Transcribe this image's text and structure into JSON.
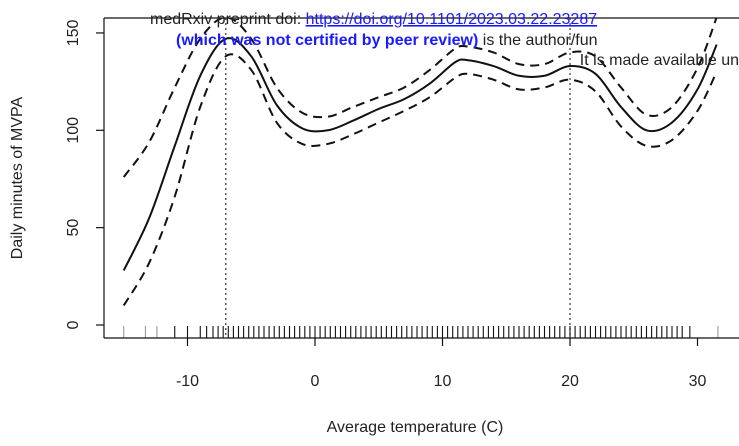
{
  "watermark": {
    "line1_prefix": "medRxiv preprint doi: ",
    "line1_link": "https://doi.org/10.1101/2023.03.22.23287",
    "line2_bold": "(which was not certified by peer review)",
    "line2_rest": " is the author/fun",
    "line3": "It is made available un",
    "link_color": "#1a1aff"
  },
  "chart_data": {
    "type": "line",
    "xlabel": "Average temperature (C)",
    "ylabel": "Daily minutes of MVPA",
    "xlim": [
      -17,
      33
    ],
    "ylim": [
      -5,
      153
    ],
    "x_ticks": [
      -10,
      0,
      10,
      20,
      30
    ],
    "y_ticks": [
      0,
      50,
      100,
      150
    ],
    "vertical_reference_lines": [
      -7,
      20
    ],
    "series": [
      {
        "style": "solid",
        "points": [
          [
            -15,
            28
          ],
          [
            -13,
            55
          ],
          [
            -11,
            92
          ],
          [
            -9,
            128
          ],
          [
            -7,
            147
          ],
          [
            -5,
            138
          ],
          [
            -3,
            113
          ],
          [
            -1,
            101
          ],
          [
            1,
            100
          ],
          [
            3,
            105
          ],
          [
            5,
            111
          ],
          [
            7,
            116
          ],
          [
            9,
            124
          ],
          [
            11,
            135
          ],
          [
            12,
            136
          ],
          [
            14,
            133
          ],
          [
            16,
            128
          ],
          [
            18,
            128
          ],
          [
            20,
            133
          ],
          [
            22,
            129
          ],
          [
            24,
            112
          ],
          [
            26,
            100
          ],
          [
            28,
            104
          ],
          [
            30,
            121
          ],
          [
            31.5,
            144
          ]
        ]
      },
      {
        "style": "dashed",
        "points": [
          [
            -15,
            76
          ],
          [
            -13,
            94
          ],
          [
            -11,
            122
          ],
          [
            -9,
            147
          ],
          [
            -7,
            158
          ],
          [
            -5,
            147
          ],
          [
            -3,
            122
          ],
          [
            -1,
            109
          ],
          [
            1,
            107
          ],
          [
            3,
            112
          ],
          [
            5,
            117
          ],
          [
            7,
            122
          ],
          [
            9,
            131
          ],
          [
            11,
            142
          ],
          [
            12,
            143
          ],
          [
            14,
            140
          ],
          [
            16,
            134
          ],
          [
            18,
            134
          ],
          [
            20,
            140
          ],
          [
            22,
            138
          ],
          [
            24,
            122
          ],
          [
            26,
            108
          ],
          [
            28,
            112
          ],
          [
            30,
            132
          ],
          [
            31.5,
            158
          ]
        ]
      },
      {
        "style": "dashed",
        "points": [
          [
            -15,
            10
          ],
          [
            -13,
            32
          ],
          [
            -11,
            66
          ],
          [
            -9,
            112
          ],
          [
            -7,
            138
          ],
          [
            -5,
            131
          ],
          [
            -3,
            104
          ],
          [
            -1,
            93
          ],
          [
            1,
            93
          ],
          [
            3,
            98
          ],
          [
            5,
            104
          ],
          [
            7,
            110
          ],
          [
            9,
            117
          ],
          [
            11,
            127
          ],
          [
            12,
            129
          ],
          [
            14,
            126
          ],
          [
            16,
            121
          ],
          [
            18,
            122
          ],
          [
            20,
            126
          ],
          [
            22,
            120
          ],
          [
            24,
            102
          ],
          [
            26,
            92
          ],
          [
            28,
            95
          ],
          [
            30,
            110
          ],
          [
            31.5,
            130
          ]
        ]
      }
    ],
    "rug_x": [
      -15,
      -13.3,
      -12.4,
      -11,
      -10,
      -9,
      -8.5,
      -8,
      -7.6,
      -7.2,
      -6.8,
      -6.4,
      -6,
      -5.6,
      -5.2,
      -4.8,
      -4.4,
      -4,
      -3.6,
      -3.2,
      -2.8,
      -2.4,
      -2,
      -1.6,
      -1.2,
      -0.8,
      -0.4,
      0,
      0.4,
      0.8,
      1.2,
      1.6,
      2,
      2.4,
      2.8,
      3.2,
      3.6,
      4,
      4.4,
      4.8,
      5.2,
      5.6,
      6,
      6.4,
      6.8,
      7.2,
      7.6,
      8,
      8.4,
      8.8,
      9.2,
      9.6,
      10,
      10.4,
      10.8,
      11.2,
      11.6,
      12,
      12.4,
      12.8,
      13.2,
      13.6,
      14,
      14.4,
      14.8,
      15.2,
      15.6,
      16,
      16.4,
      16.8,
      17.2,
      17.6,
      18,
      18.4,
      18.8,
      19.2,
      19.6,
      20,
      20.4,
      20.8,
      21.2,
      21.6,
      22,
      22.4,
      22.8,
      23.2,
      23.6,
      24,
      24.4,
      24.8,
      25.2,
      25.6,
      26,
      26.4,
      26.8,
      27.2,
      27.6,
      28,
      28.4,
      28.8,
      29.4,
      31.6
    ]
  }
}
